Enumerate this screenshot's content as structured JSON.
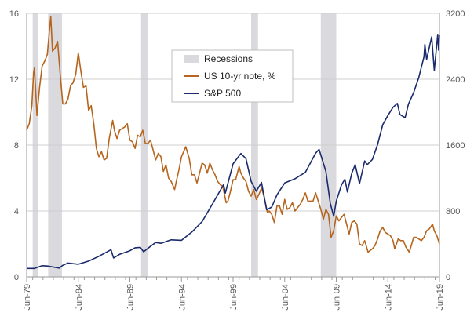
{
  "chart_data": {
    "type": "line",
    "title": "",
    "legend": {
      "placement": "top-center",
      "entries": [
        {
          "key": "recessions",
          "label": "Recessions"
        },
        {
          "key": "yield",
          "label": "US 10-yr note, %"
        },
        {
          "key": "sp500",
          "label": "S&P 500"
        }
      ]
    },
    "x_axis": {
      "range": [
        "1979-06",
        "2019-06"
      ],
      "tick_labels": [
        "Jun-79",
        "Jun-84",
        "Jun-89",
        "Jun-94",
        "Jun-99",
        "Jun-04",
        "Jun-09",
        "Jun-14",
        "Jun-19"
      ],
      "tick_dates": [
        "1979-06",
        "1984-06",
        "1989-06",
        "1994-06",
        "1999-06",
        "2004-06",
        "2009-06",
        "2014-06",
        "2019-06"
      ]
    },
    "y_axis_left": {
      "range": [
        0,
        16
      ],
      "ticks": [
        "0",
        "4",
        "8",
        "12",
        "16"
      ],
      "tick_values": [
        0,
        4,
        8,
        12,
        16
      ]
    },
    "y_axis_right": {
      "range": [
        0,
        3200
      ],
      "ticks": [
        "0",
        "800",
        "1600",
        "2400",
        "3200"
      ],
      "tick_values": [
        0,
        800,
        1600,
        2400,
        3200
      ]
    },
    "grid": true,
    "colors": {
      "recessions": "#d9d9de",
      "yield": "#b5651d",
      "sp500": "#1a2a6c",
      "grid": "#cfcfcf",
      "axis": "#9a9a9a"
    },
    "recessions": [
      {
        "start": "1980-01",
        "end": "1980-07"
      },
      {
        "start": "1981-07",
        "end": "1982-11"
      },
      {
        "start": "1990-07",
        "end": "1991-03"
      },
      {
        "start": "2001-03",
        "end": "2001-11"
      },
      {
        "start": "2007-12",
        "end": "2009-06"
      }
    ],
    "series": [
      {
        "key": "yield",
        "axis": "left",
        "points": [
          [
            "1979-06",
            8.9
          ],
          [
            "1979-09",
            9.3
          ],
          [
            "1979-12",
            10.4
          ],
          [
            "1980-02",
            12.4
          ],
          [
            "1980-03",
            12.7
          ],
          [
            "1980-06",
            9.8
          ],
          [
            "1980-09",
            11.5
          ],
          [
            "1980-12",
            12.8
          ],
          [
            "1981-03",
            13.1
          ],
          [
            "1981-06",
            13.5
          ],
          [
            "1981-09",
            15.3
          ],
          [
            "1981-10",
            15.8
          ],
          [
            "1981-12",
            13.7
          ],
          [
            "1982-03",
            13.9
          ],
          [
            "1982-06",
            14.3
          ],
          [
            "1982-09",
            12.3
          ],
          [
            "1982-12",
            10.5
          ],
          [
            "1983-03",
            10.5
          ],
          [
            "1983-06",
            10.8
          ],
          [
            "1983-09",
            11.6
          ],
          [
            "1983-12",
            11.8
          ],
          [
            "1984-03",
            12.3
          ],
          [
            "1984-06",
            13.6
          ],
          [
            "1984-09",
            12.5
          ],
          [
            "1984-12",
            11.5
          ],
          [
            "1985-03",
            11.6
          ],
          [
            "1985-06",
            10.1
          ],
          [
            "1985-09",
            10.4
          ],
          [
            "1985-12",
            9.3
          ],
          [
            "1986-03",
            7.8
          ],
          [
            "1986-06",
            7.3
          ],
          [
            "1986-09",
            7.6
          ],
          [
            "1986-12",
            7.1
          ],
          [
            "1987-03",
            7.2
          ],
          [
            "1987-06",
            8.4
          ],
          [
            "1987-10",
            9.5
          ],
          [
            "1987-12",
            8.9
          ],
          [
            "1988-03",
            8.4
          ],
          [
            "1988-06",
            8.9
          ],
          [
            "1988-09",
            9.0
          ],
          [
            "1988-12",
            9.1
          ],
          [
            "1989-03",
            9.3
          ],
          [
            "1989-06",
            8.3
          ],
          [
            "1989-09",
            8.2
          ],
          [
            "1989-12",
            7.8
          ],
          [
            "1990-03",
            8.6
          ],
          [
            "1990-06",
            8.5
          ],
          [
            "1990-09",
            8.9
          ],
          [
            "1990-12",
            8.1
          ],
          [
            "1991-03",
            8.1
          ],
          [
            "1991-06",
            8.3
          ],
          [
            "1991-09",
            7.7
          ],
          [
            "1991-12",
            7.1
          ],
          [
            "1992-03",
            7.5
          ],
          [
            "1992-06",
            7.3
          ],
          [
            "1992-09",
            6.4
          ],
          [
            "1992-12",
            6.8
          ],
          [
            "1993-03",
            6.0
          ],
          [
            "1993-06",
            5.8
          ],
          [
            "1993-10",
            5.3
          ],
          [
            "1993-12",
            5.8
          ],
          [
            "1994-03",
            6.5
          ],
          [
            "1994-06",
            7.3
          ],
          [
            "1994-11",
            7.9
          ],
          [
            "1995-03",
            7.2
          ],
          [
            "1995-06",
            6.2
          ],
          [
            "1995-09",
            6.2
          ],
          [
            "1995-12",
            5.7
          ],
          [
            "1996-03",
            6.3
          ],
          [
            "1996-06",
            6.9
          ],
          [
            "1996-09",
            6.8
          ],
          [
            "1996-12",
            6.3
          ],
          [
            "1997-03",
            6.9
          ],
          [
            "1997-06",
            6.5
          ],
          [
            "1997-09",
            6.2
          ],
          [
            "1997-12",
            5.8
          ],
          [
            "1998-03",
            5.6
          ],
          [
            "1998-06",
            5.5
          ],
          [
            "1998-10",
            4.5
          ],
          [
            "1998-12",
            4.6
          ],
          [
            "1999-03",
            5.2
          ],
          [
            "1999-06",
            5.9
          ],
          [
            "1999-09",
            5.9
          ],
          [
            "2000-01",
            6.7
          ],
          [
            "2000-03",
            6.3
          ],
          [
            "2000-06",
            6.0
          ],
          [
            "2000-09",
            5.8
          ],
          [
            "2000-12",
            5.2
          ],
          [
            "2001-03",
            4.9
          ],
          [
            "2001-06",
            5.3
          ],
          [
            "2001-09",
            4.7
          ],
          [
            "2001-12",
            5.0
          ],
          [
            "2002-03",
            5.4
          ],
          [
            "2002-06",
            4.9
          ],
          [
            "2002-10",
            3.9
          ],
          [
            "2002-12",
            4.0
          ],
          [
            "2003-03",
            3.8
          ],
          [
            "2003-06",
            3.3
          ],
          [
            "2003-09",
            4.3
          ],
          [
            "2003-12",
            4.3
          ],
          [
            "2004-03",
            3.8
          ],
          [
            "2004-06",
            4.7
          ],
          [
            "2004-09",
            4.1
          ],
          [
            "2004-12",
            4.2
          ],
          [
            "2005-03",
            4.5
          ],
          [
            "2005-06",
            4.0
          ],
          [
            "2005-09",
            4.2
          ],
          [
            "2005-12",
            4.4
          ],
          [
            "2006-03",
            4.7
          ],
          [
            "2006-06",
            5.1
          ],
          [
            "2006-09",
            4.6
          ],
          [
            "2006-12",
            4.6
          ],
          [
            "2007-03",
            4.6
          ],
          [
            "2007-06",
            5.1
          ],
          [
            "2007-09",
            4.6
          ],
          [
            "2007-12",
            4.1
          ],
          [
            "2008-03",
            3.5
          ],
          [
            "2008-06",
            4.1
          ],
          [
            "2008-09",
            3.8
          ],
          [
            "2008-12",
            2.4
          ],
          [
            "2009-03",
            2.8
          ],
          [
            "2009-06",
            3.7
          ],
          [
            "2009-09",
            3.4
          ],
          [
            "2009-12",
            3.6
          ],
          [
            "2010-03",
            3.8
          ],
          [
            "2010-06",
            3.2
          ],
          [
            "2010-09",
            2.6
          ],
          [
            "2010-12",
            3.3
          ],
          [
            "2011-03",
            3.4
          ],
          [
            "2011-06",
            3.2
          ],
          [
            "2011-09",
            2.0
          ],
          [
            "2011-12",
            1.9
          ],
          [
            "2012-03",
            2.2
          ],
          [
            "2012-07",
            1.5
          ],
          [
            "2012-12",
            1.7
          ],
          [
            "2013-03",
            1.9
          ],
          [
            "2013-06",
            2.3
          ],
          [
            "2013-09",
            2.8
          ],
          [
            "2013-12",
            3.0
          ],
          [
            "2014-03",
            2.7
          ],
          [
            "2014-06",
            2.6
          ],
          [
            "2014-09",
            2.5
          ],
          [
            "2014-12",
            2.2
          ],
          [
            "2015-02",
            1.7
          ],
          [
            "2015-06",
            2.3
          ],
          [
            "2015-09",
            2.2
          ],
          [
            "2015-12",
            2.2
          ],
          [
            "2016-03",
            1.8
          ],
          [
            "2016-07",
            1.5
          ],
          [
            "2016-12",
            2.4
          ],
          [
            "2017-03",
            2.4
          ],
          [
            "2017-06",
            2.3
          ],
          [
            "2017-09",
            2.2
          ],
          [
            "2017-12",
            2.4
          ],
          [
            "2018-03",
            2.8
          ],
          [
            "2018-06",
            2.9
          ],
          [
            "2018-10",
            3.2
          ],
          [
            "2018-12",
            2.8
          ],
          [
            "2019-03",
            2.5
          ],
          [
            "2019-06",
            2.0
          ]
        ]
      },
      {
        "key": "sp500",
        "axis": "right",
        "points": [
          [
            "1979-06",
            102
          ],
          [
            "1980-03",
            102
          ],
          [
            "1980-12",
            135
          ],
          [
            "1981-06",
            131
          ],
          [
            "1982-08",
            107
          ],
          [
            "1982-12",
            140
          ],
          [
            "1983-06",
            168
          ],
          [
            "1984-06",
            153
          ],
          [
            "1985-06",
            191
          ],
          [
            "1986-06",
            250
          ],
          [
            "1987-08",
            330
          ],
          [
            "1987-11",
            230
          ],
          [
            "1988-06",
            273
          ],
          [
            "1989-06",
            317
          ],
          [
            "1989-12",
            353
          ],
          [
            "1990-06",
            358
          ],
          [
            "1990-10",
            305
          ],
          [
            "1991-06",
            371
          ],
          [
            "1991-12",
            417
          ],
          [
            "1992-06",
            408
          ],
          [
            "1993-06",
            450
          ],
          [
            "1994-06",
            444
          ],
          [
            "1995-06",
            544
          ],
          [
            "1996-06",
            670
          ],
          [
            "1997-06",
            885
          ],
          [
            "1998-07",
            1120
          ],
          [
            "1998-09",
            1017
          ],
          [
            "1999-06",
            1372
          ],
          [
            "2000-03",
            1498
          ],
          [
            "2000-09",
            1436
          ],
          [
            "2001-03",
            1160
          ],
          [
            "2001-09",
            1040
          ],
          [
            "2002-03",
            1147
          ],
          [
            "2002-09",
            815
          ],
          [
            "2003-03",
            848
          ],
          [
            "2003-09",
            996
          ],
          [
            "2004-06",
            1140
          ],
          [
            "2005-06",
            1191
          ],
          [
            "2006-06",
            1270
          ],
          [
            "2007-06",
            1503
          ],
          [
            "2007-10",
            1549
          ],
          [
            "2008-06",
            1280
          ],
          [
            "2008-11",
            896
          ],
          [
            "2009-03",
            735
          ],
          [
            "2009-06",
            919
          ],
          [
            "2009-12",
            1115
          ],
          [
            "2010-04",
            1186
          ],
          [
            "2010-07",
            1030
          ],
          [
            "2010-12",
            1257
          ],
          [
            "2011-04",
            1363
          ],
          [
            "2011-09",
            1131
          ],
          [
            "2012-03",
            1408
          ],
          [
            "2012-06",
            1362
          ],
          [
            "2012-12",
            1426
          ],
          [
            "2013-06",
            1606
          ],
          [
            "2013-12",
            1848
          ],
          [
            "2014-06",
            1960
          ],
          [
            "2014-12",
            2059
          ],
          [
            "2015-05",
            2107
          ],
          [
            "2015-08",
            1972
          ],
          [
            "2016-02",
            1932
          ],
          [
            "2016-06",
            2098
          ],
          [
            "2016-12",
            2238
          ],
          [
            "2017-06",
            2423
          ],
          [
            "2017-12",
            2673
          ],
          [
            "2018-01",
            2823
          ],
          [
            "2018-03",
            2640
          ],
          [
            "2018-09",
            2913
          ],
          [
            "2018-12",
            2507
          ],
          [
            "2019-04",
            2945
          ],
          [
            "2019-05",
            2752
          ],
          [
            "2019-06",
            2941
          ]
        ]
      }
    ]
  }
}
